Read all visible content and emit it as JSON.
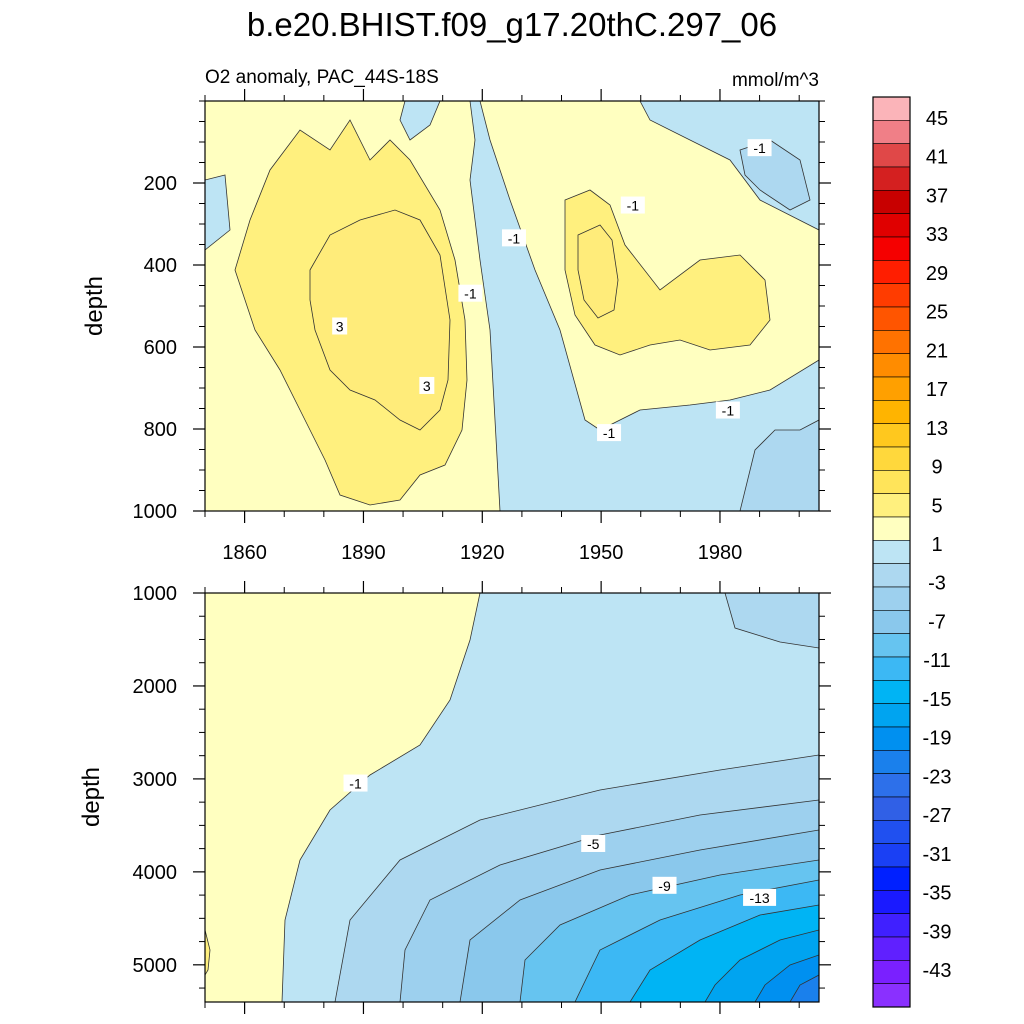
{
  "chart_data": {
    "type": "heatmap",
    "title": "b.e20.BHIST.f09_g17.20thC.297_06",
    "subtitle": "O2 anomaly, PAC_44S-18S",
    "units": "mmol/m^3",
    "ylabel": "depth",
    "xlim": [
      1850,
      2005
    ],
    "x_ticks": [
      1860,
      1890,
      1920,
      1950,
      1980
    ],
    "colorbar": {
      "labels": [
        "45",
        "41",
        "37",
        "33",
        "29",
        "25",
        "21",
        "17",
        "13",
        "9",
        "5",
        "1",
        "-3",
        "-7",
        "-11",
        "-15",
        "-19",
        "-23",
        "-27",
        "-31",
        "-35",
        "-39",
        "-43"
      ],
      "colors": [
        "#fbb4b9",
        "#f07f87",
        "#e04848",
        "#d42020",
        "#c80000",
        "#e00000",
        "#f50000",
        "#ff1e00",
        "#ff3c00",
        "#ff5500",
        "#ff7200",
        "#ff8c00",
        "#ffa000",
        "#ffb400",
        "#ffc81e",
        "#ffd83c",
        "#ffe45a",
        "#fff07e",
        "#ffffc0",
        "#bde4f4",
        "#add8f0",
        "#9dd0ee",
        "#8ac8ec",
        "#66c4f0",
        "#3cb8f4",
        "#00b4f4",
        "#00a4f0",
        "#0090f0",
        "#1a80ec",
        "#2d70ea",
        "#3060e6",
        "#2050f0",
        "#1a40f4",
        "#0020ff",
        "#1a1aff",
        "#4020ff",
        "#6020ff",
        "#7a20ff",
        "#8a30ff"
      ]
    },
    "panels": [
      {
        "name": "upper",
        "ylim": [
          0,
          1000
        ],
        "y_ticks": [
          200,
          400,
          600,
          800,
          1000
        ],
        "contour_labels": [
          {
            "text": "3",
            "x": 1884,
            "y": 550
          },
          {
            "text": "3",
            "x": 1906,
            "y": 695
          },
          {
            "text": "-1",
            "x": 1917,
            "y": 470
          },
          {
            "text": "-1",
            "x": 1928,
            "y": 335
          },
          {
            "text": "-1",
            "x": 1958,
            "y": 255
          },
          {
            "text": "-1",
            "x": 1990,
            "y": 115
          },
          {
            "text": "-1",
            "x": 1952,
            "y": 810
          },
          {
            "text": "-1",
            "x": 1982,
            "y": 755
          }
        ]
      },
      {
        "name": "lower",
        "ylim": [
          1000,
          5400
        ],
        "y_ticks": [
          1000,
          2000,
          3000,
          4000,
          5000
        ],
        "contour_labels": [
          {
            "text": "-1",
            "x": 1888,
            "y": 3050
          },
          {
            "text": "-5",
            "x": 1948,
            "y": 3700
          },
          {
            "text": "-9",
            "x": 1966,
            "y": 4150
          },
          {
            "text": "-13",
            "x": 1990,
            "y": 4280
          }
        ]
      }
    ]
  }
}
